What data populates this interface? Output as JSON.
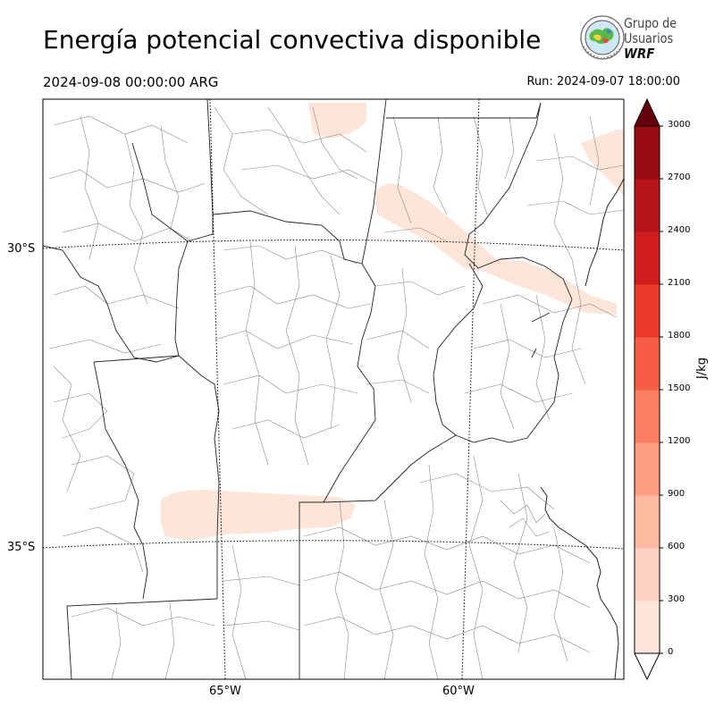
{
  "header": {
    "title": "Energía potencial convectiva disponible",
    "valid_time": "2024-09-08 00:00:00 ARG",
    "run_time": "Run: 2024-09-07 18:00:00"
  },
  "logo": {
    "line1": "Grupo de",
    "line2": "Usuarios",
    "line3": "WRF"
  },
  "map": {
    "lat_labels": [
      "30°S",
      "35°S"
    ],
    "lon_labels": [
      "65°W",
      "60°W"
    ]
  },
  "colorbar": {
    "unit": "J/kg",
    "ticks": [
      "0",
      "300",
      "600",
      "900",
      "1200",
      "1500",
      "1800",
      "2100",
      "2400",
      "2700",
      "3000"
    ],
    "colors": [
      "#fee5d9",
      "#fdd2c3",
      "#fcbaa0",
      "#fc9e80",
      "#fb7e61",
      "#f65d44",
      "#ea3b2d",
      "#d21d1f",
      "#b71419",
      "#980c13",
      "#7a0510"
    ],
    "over_color": "#67000d"
  },
  "legend_colors": {
    "cape_low": "#fee5d9"
  }
}
